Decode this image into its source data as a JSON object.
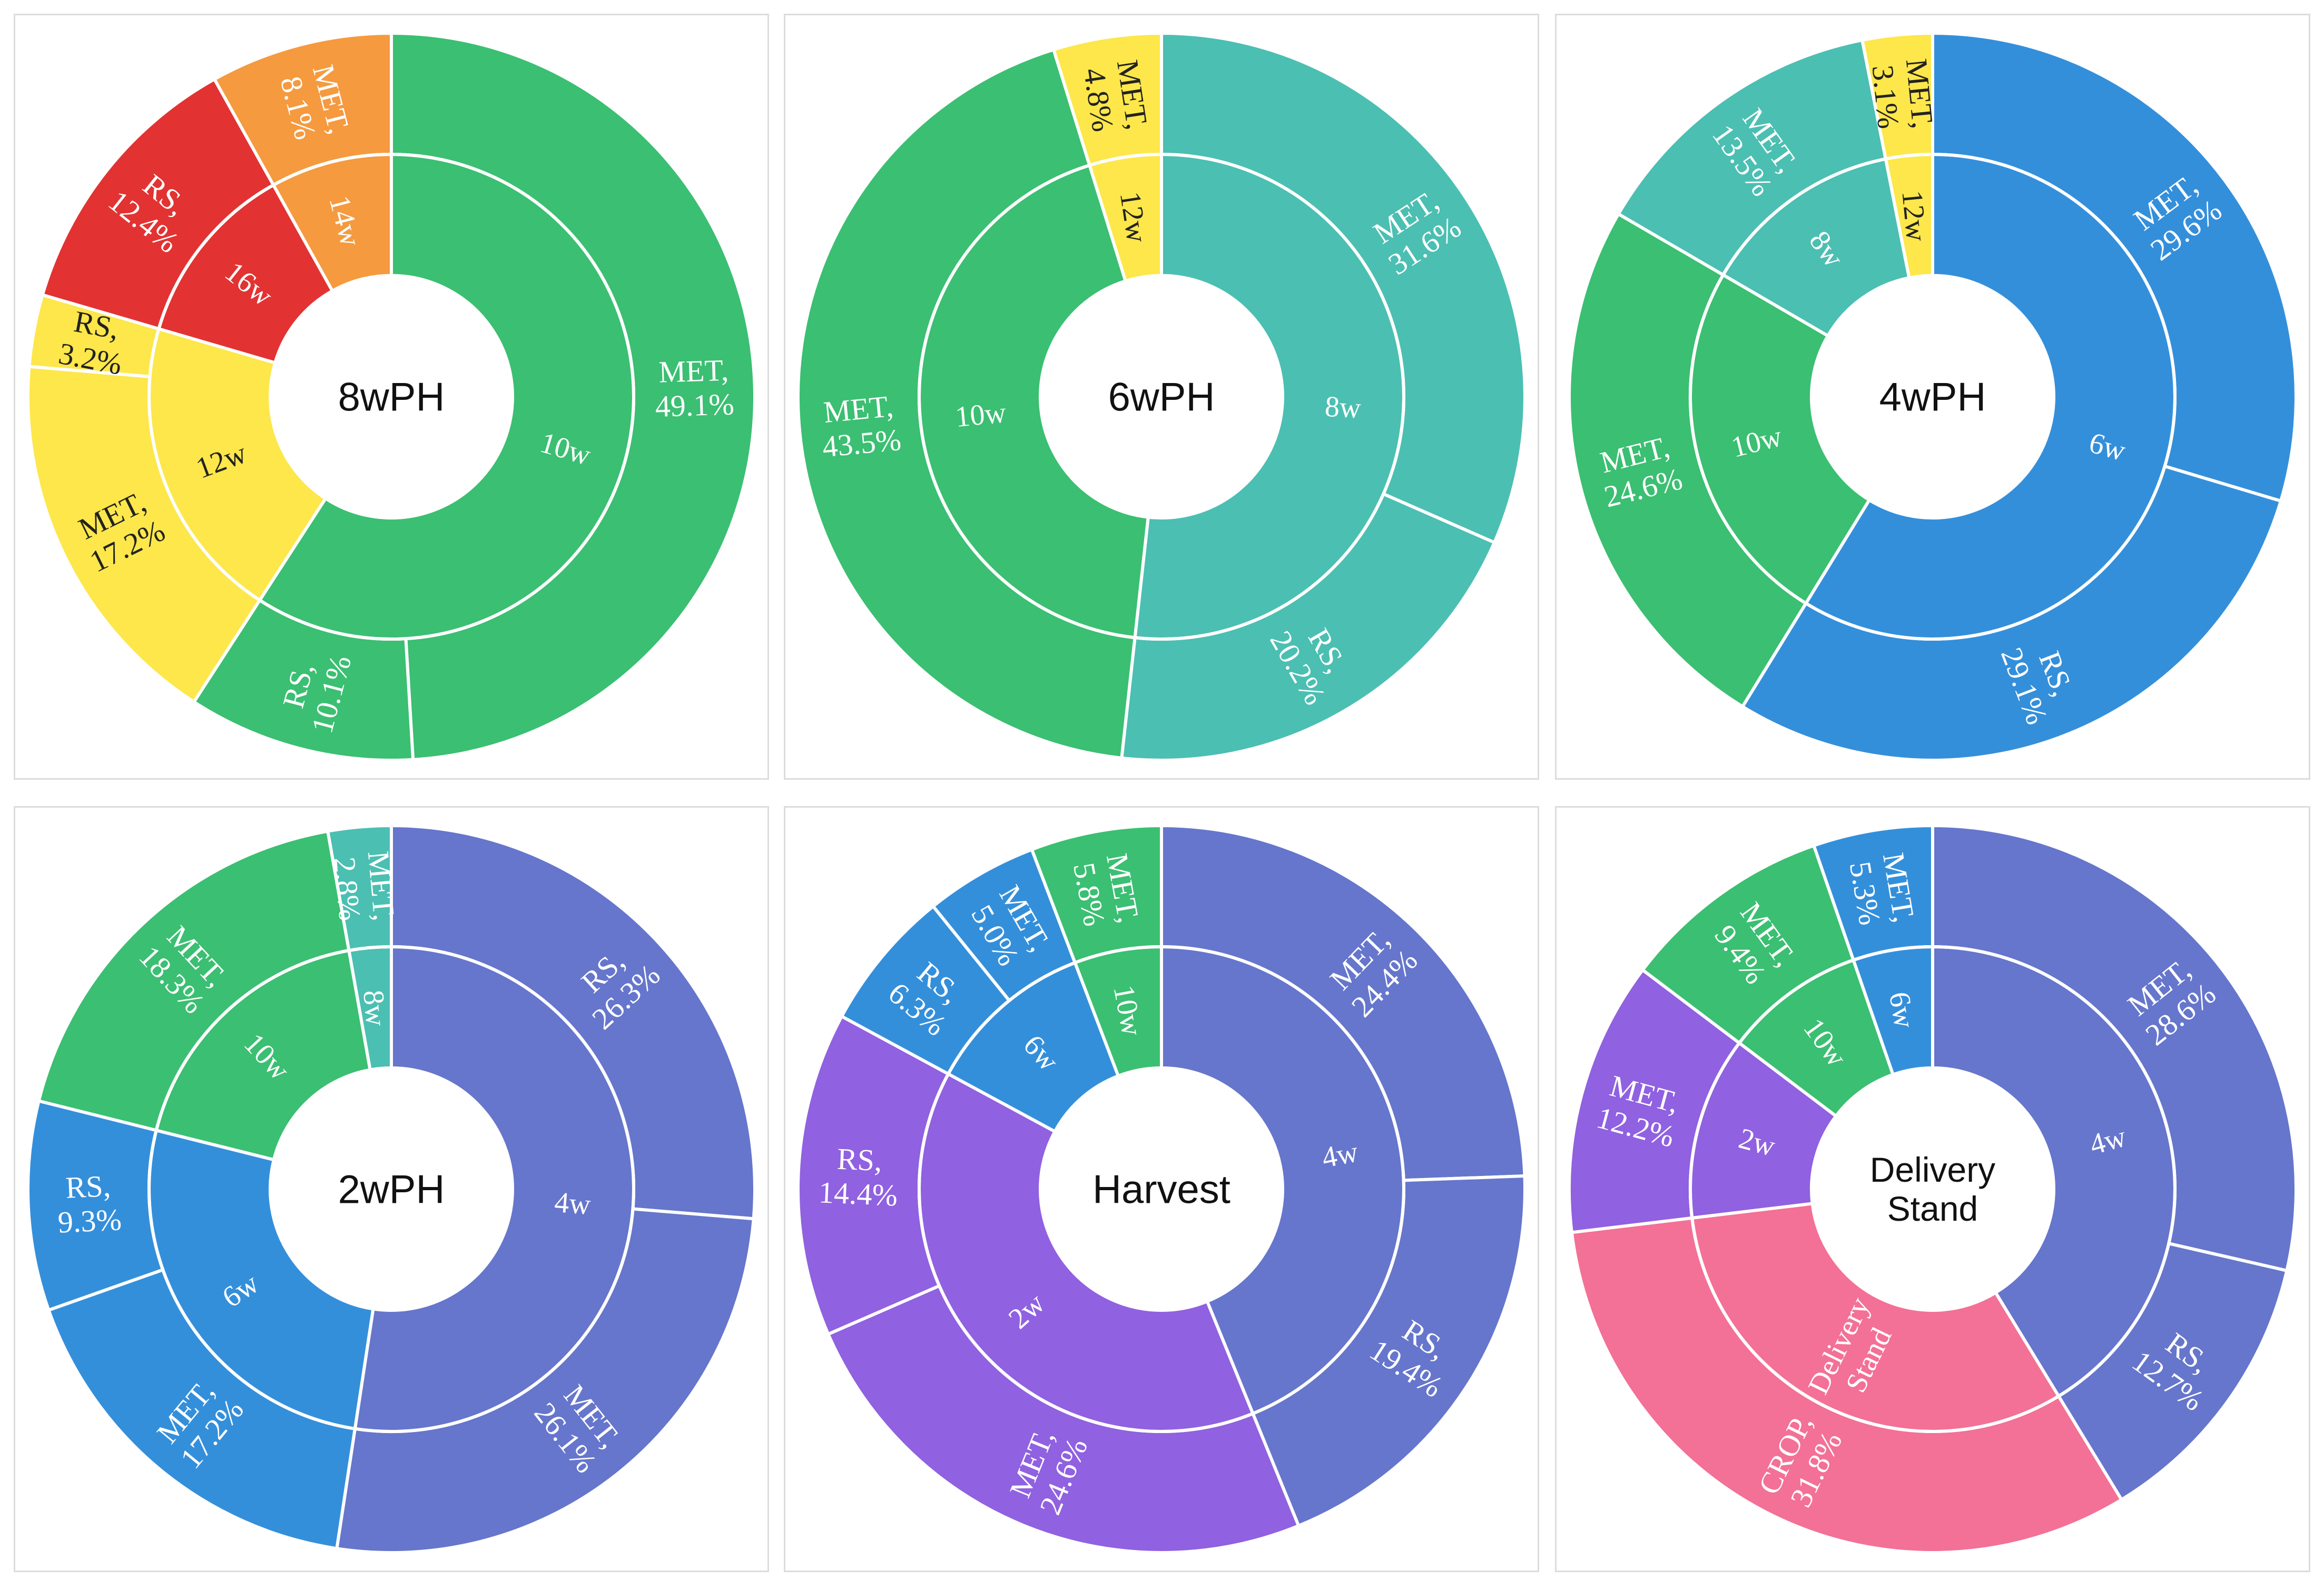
{
  "colors": {
    "green": "#3bbf72",
    "teal": "#4bbfb2",
    "yellow": "#fde74a",
    "orange": "#f59a3f",
    "red": "#e33232",
    "blue": "#348fdb",
    "indigo": "#6676cc",
    "purple": "#9061e0",
    "pink": "#f37096"
  },
  "chart_data": [
    {
      "type": "sunburst",
      "title": "8wPH",
      "title_lines": [
        "8wPH"
      ],
      "inner": [
        {
          "label": "10w",
          "value": 59.2,
          "color": "green"
        },
        {
          "label": "12w",
          "value": 20.4,
          "color": "yellow"
        },
        {
          "label": "16w",
          "value": 12.4,
          "color": "red"
        },
        {
          "label": "14w",
          "value": 8.1,
          "color": "orange"
        }
      ],
      "outer": [
        {
          "label": "MET, 49.1%",
          "value": 49.1,
          "color": "green"
        },
        {
          "label": "RS, 10.1%",
          "value": 10.1,
          "color": "green"
        },
        {
          "label": "MET, 17.2%",
          "value": 17.2,
          "color": "yellow"
        },
        {
          "label": "RS, 3.2%",
          "value": 3.2,
          "color": "yellow"
        },
        {
          "label": "RS, 12.4%",
          "value": 12.4,
          "color": "red"
        },
        {
          "label": "MET, 8.1%",
          "value": 8.1,
          "color": "orange"
        }
      ]
    },
    {
      "type": "sunburst",
      "title": "6wPH",
      "title_lines": [
        "6wPH"
      ],
      "inner": [
        {
          "label": "8w",
          "value": 51.8,
          "color": "teal"
        },
        {
          "label": "10w",
          "value": 43.5,
          "color": "green"
        },
        {
          "label": "12w",
          "value": 4.8,
          "color": "yellow"
        }
      ],
      "outer": [
        {
          "label": "MET, 31.6%",
          "value": 31.6,
          "color": "teal"
        },
        {
          "label": "RS, 20.2%",
          "value": 20.2,
          "color": "teal"
        },
        {
          "label": "MET, 43.5%",
          "value": 43.5,
          "color": "green"
        },
        {
          "label": "MET, 4.8%",
          "value": 4.8,
          "color": "yellow"
        }
      ]
    },
    {
      "type": "sunburst",
      "title": "4wPH",
      "title_lines": [
        "4wPH"
      ],
      "inner": [
        {
          "label": "6w",
          "value": 58.7,
          "color": "blue"
        },
        {
          "label": "10w",
          "value": 24.6,
          "color": "green"
        },
        {
          "label": "8w",
          "value": 13.5,
          "color": "teal"
        },
        {
          "label": "12w",
          "value": 3.1,
          "color": "yellow"
        }
      ],
      "outer": [
        {
          "label": "MET, 29.6%",
          "value": 29.6,
          "color": "blue"
        },
        {
          "label": "RS, 29.1%",
          "value": 29.1,
          "color": "blue"
        },
        {
          "label": "MET, 24.6%",
          "value": 24.6,
          "color": "green"
        },
        {
          "label": "MET, 13.5%",
          "value": 13.5,
          "color": "teal"
        },
        {
          "label": "MET, 3.1%",
          "value": 3.1,
          "color": "yellow"
        }
      ]
    },
    {
      "type": "sunburst",
      "title": "2wPH",
      "title_lines": [
        "2wPH"
      ],
      "inner": [
        {
          "label": "4w",
          "value": 52.4,
          "color": "indigo"
        },
        {
          "label": "6w",
          "value": 26.5,
          "color": "blue"
        },
        {
          "label": "10w",
          "value": 18.3,
          "color": "green"
        },
        {
          "label": "8w",
          "value": 2.8,
          "color": "teal"
        }
      ],
      "outer": [
        {
          "label": "RS, 26.3%",
          "value": 26.3,
          "color": "indigo"
        },
        {
          "label": "MET, 26.1%",
          "value": 26.1,
          "color": "indigo"
        },
        {
          "label": "MET, 17.2%",
          "value": 17.2,
          "color": "blue"
        },
        {
          "label": "RS, 9.3%",
          "value": 9.3,
          "color": "blue"
        },
        {
          "label": "MET, 18.3%",
          "value": 18.3,
          "color": "green"
        },
        {
          "label": "MET, 2.8%",
          "value": 2.8,
          "color": "teal"
        }
      ]
    },
    {
      "type": "sunburst",
      "title": "Harvest",
      "title_lines": [
        "Harvest"
      ],
      "inner": [
        {
          "label": "4w",
          "value": 43.8,
          "color": "indigo"
        },
        {
          "label": "2w",
          "value": 39.0,
          "color": "purple"
        },
        {
          "label": "6w",
          "value": 11.3,
          "color": "blue"
        },
        {
          "label": "10w",
          "value": 5.8,
          "color": "green"
        }
      ],
      "outer": [
        {
          "label": "MET, 24.4%",
          "value": 24.4,
          "color": "indigo"
        },
        {
          "label": "RS, 19.4%",
          "value": 19.4,
          "color": "indigo"
        },
        {
          "label": "MET, 24.6%",
          "value": 24.6,
          "color": "purple"
        },
        {
          "label": "RS, 14.4%",
          "value": 14.4,
          "color": "purple"
        },
        {
          "label": "RS, 6.3%",
          "value": 6.3,
          "color": "blue"
        },
        {
          "label": "MET, 5.0%",
          "value": 5.0,
          "color": "blue"
        },
        {
          "label": "MET, 5.8%",
          "value": 5.8,
          "color": "green"
        }
      ]
    },
    {
      "type": "sunburst",
      "title": "Delivery Stand",
      "title_lines": [
        "Delivery",
        "Stand"
      ],
      "inner": [
        {
          "label": "4w",
          "value": 41.3,
          "color": "indigo"
        },
        {
          "label": "Delivery Stand",
          "value": 31.8,
          "color": "pink"
        },
        {
          "label": "2w",
          "value": 12.2,
          "color": "purple"
        },
        {
          "label": "10w",
          "value": 9.4,
          "color": "green"
        },
        {
          "label": "6w",
          "value": 5.3,
          "color": "blue"
        }
      ],
      "outer": [
        {
          "label": "MET, 28.6%",
          "value": 28.6,
          "color": "indigo"
        },
        {
          "label": "RS, 12.7%",
          "value": 12.7,
          "color": "indigo"
        },
        {
          "label": "CROP, 31.8%",
          "value": 31.8,
          "color": "pink"
        },
        {
          "label": "MET, 12.2%",
          "value": 12.2,
          "color": "purple"
        },
        {
          "label": "MET, 9.4%",
          "value": 9.4,
          "color": "green"
        },
        {
          "label": "MET, 5.3%",
          "value": 5.3,
          "color": "blue"
        }
      ]
    }
  ]
}
